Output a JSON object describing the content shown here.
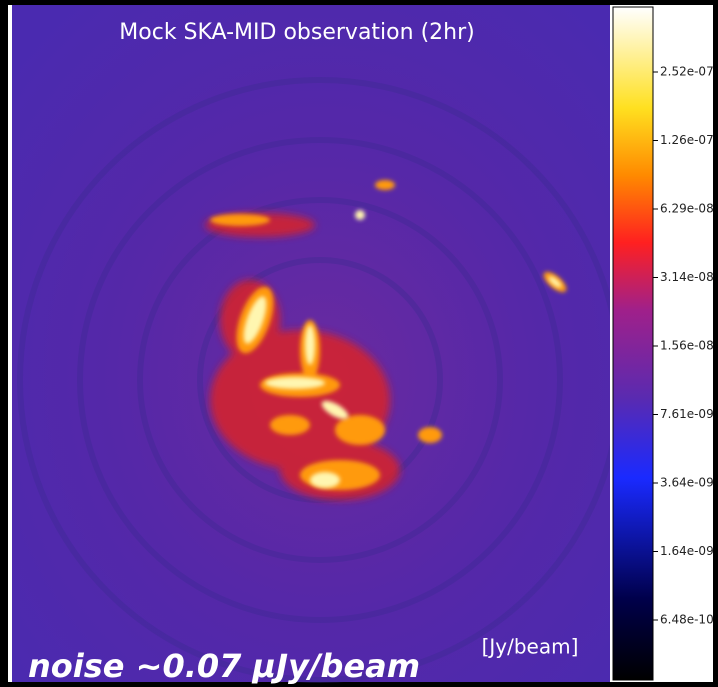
{
  "title": "Mock SKA-MID observation (2hr)",
  "colorbar": {
    "ticks": [
      "2.52e-07",
      "1.26e-07",
      "6.29e-08",
      "3.14e-08",
      "1.56e-08",
      "7.61e-09",
      "3.64e-09",
      "1.64e-09",
      "6.48e-10"
    ]
  },
  "unit_label": "[Jy/beam]",
  "caption": "noise ~0.07 μJy/beam"
}
